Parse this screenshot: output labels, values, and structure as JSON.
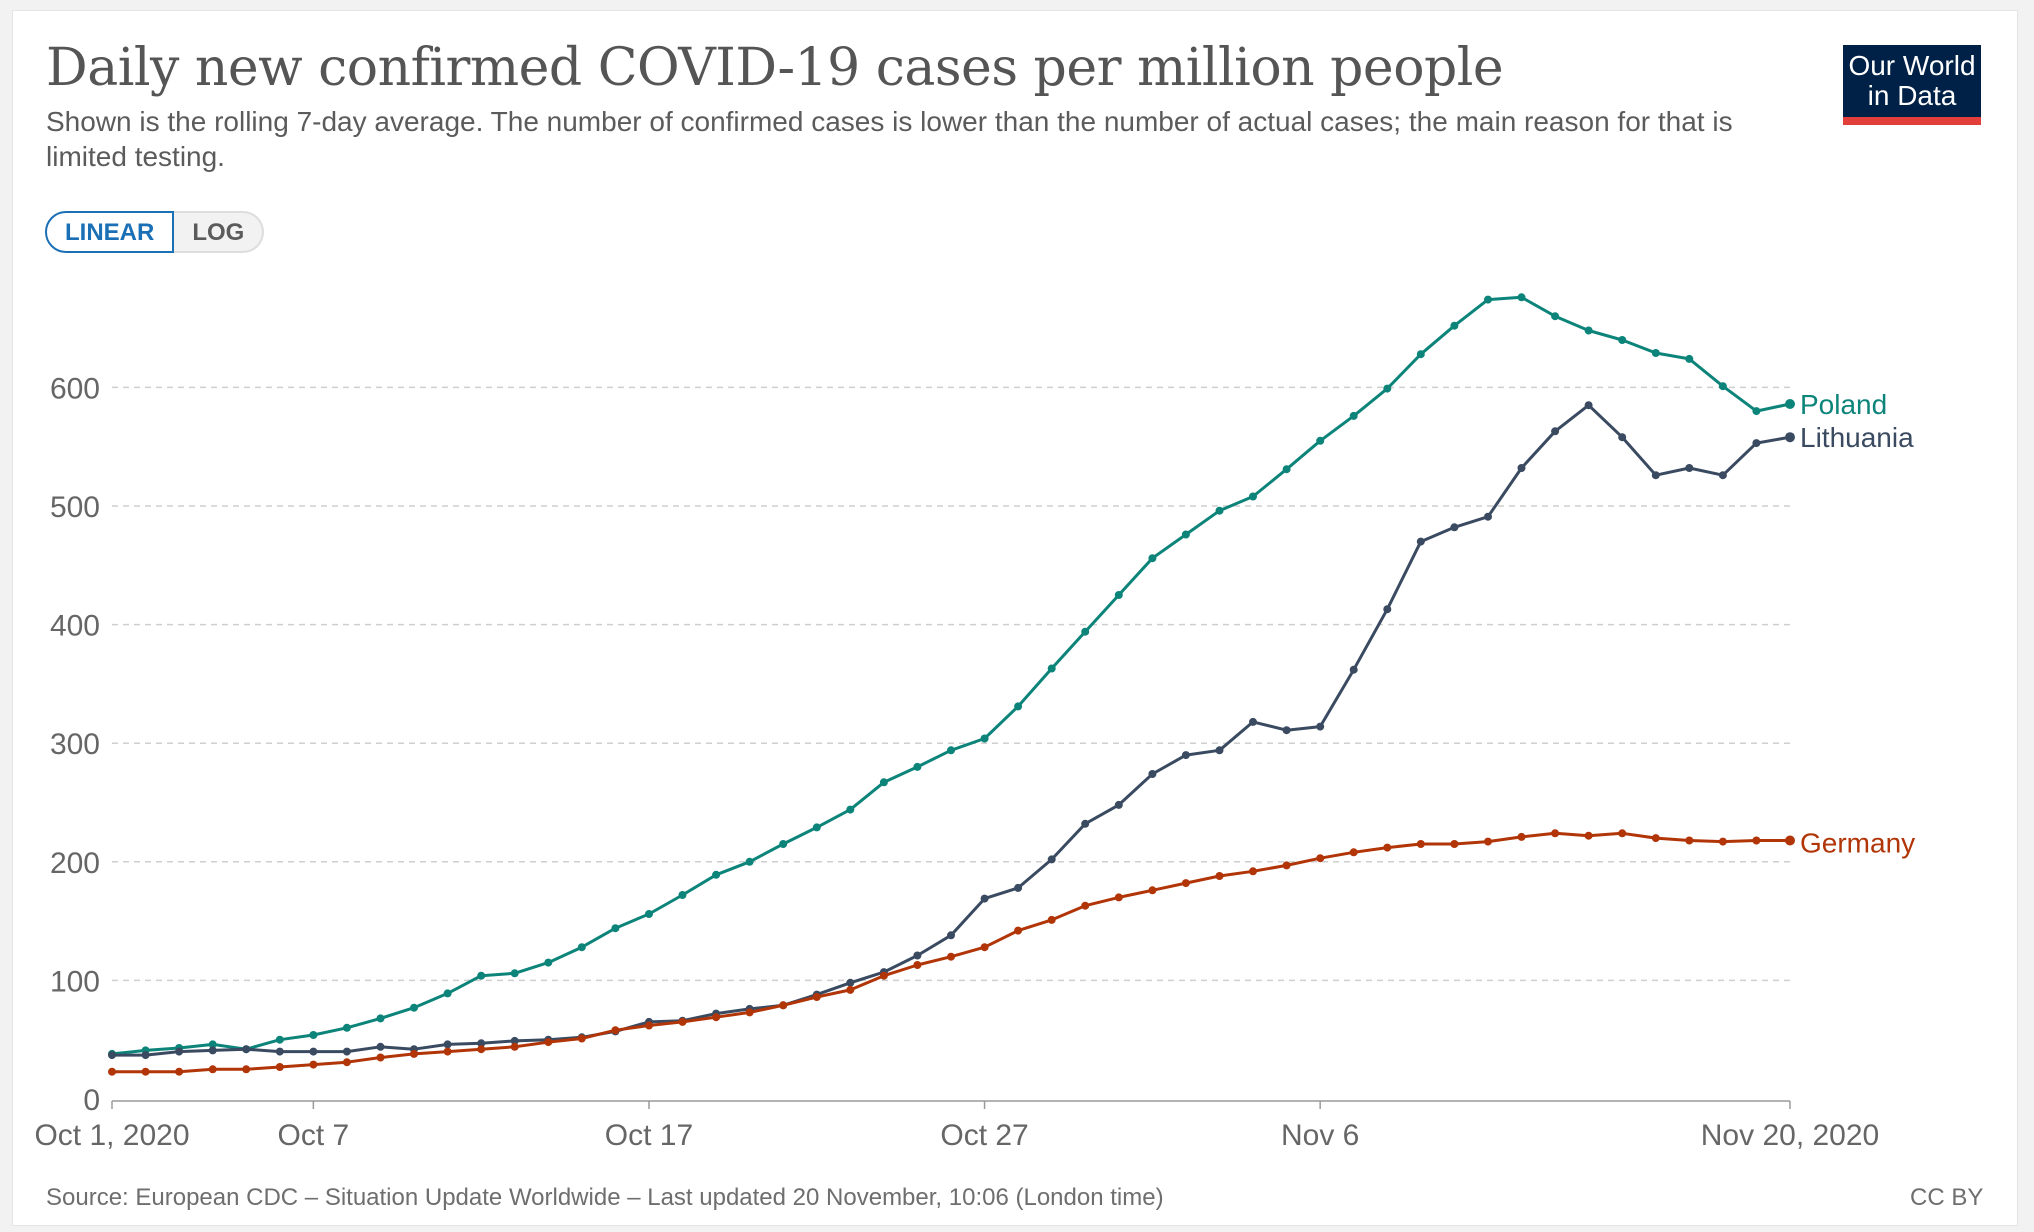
{
  "header": {
    "title": "Daily new confirmed COVID-19 cases per million people",
    "subtitle": "Shown is the rolling 7-day average. The number of confirmed cases is lower than the number of actual cases; the main reason for that is limited testing.",
    "logo_line1": "Our World",
    "logo_line2": "in Data",
    "logo_color": "#002147",
    "logo_accent": "#e23e3a"
  },
  "controls": {
    "linear_label": "LINEAR",
    "log_label": "LOG",
    "active": "linear"
  },
  "chart_data": {
    "type": "line",
    "x_unit": "day index (0 = Oct 1, 2020)",
    "x_ticks": [
      {
        "day": 0,
        "label": "Oct 1, 2020"
      },
      {
        "day": 6,
        "label": "Oct 7"
      },
      {
        "day": 16,
        "label": "Oct 17"
      },
      {
        "day": 26,
        "label": "Oct 27"
      },
      {
        "day": 36,
        "label": "Nov 6"
      },
      {
        "day": 50,
        "label": "Nov 20, 2020"
      }
    ],
    "y_ticks": [
      0,
      100,
      200,
      300,
      400,
      500,
      600
    ],
    "ylim": [
      0,
      690
    ],
    "xlim": [
      0,
      50
    ],
    "grid": "horizontal dashed",
    "legend": "labels at line ends",
    "series": [
      {
        "name": "Poland",
        "color": "#0c8479",
        "values": [
          38,
          41,
          43,
          46,
          42,
          50,
          54,
          60,
          68,
          77,
          89,
          104,
          106,
          115,
          128,
          144,
          156,
          172,
          189,
          200,
          215,
          229,
          244,
          267,
          280,
          294,
          304,
          331,
          363,
          394,
          425,
          456,
          476,
          496,
          508,
          531,
          555,
          576,
          599,
          628,
          652,
          674,
          676,
          660,
          648,
          640,
          629,
          624,
          601,
          580,
          586
        ]
      },
      {
        "name": "Lithuania",
        "color": "#3a4a60",
        "values": [
          37,
          37,
          40,
          41,
          42,
          40,
          40,
          40,
          44,
          42,
          46,
          47,
          49,
          50,
          52,
          57,
          65,
          66,
          72,
          76,
          79,
          88,
          98,
          107,
          121,
          138,
          169,
          178,
          202,
          232,
          248,
          274,
          290,
          294,
          318,
          311,
          314,
          362,
          413,
          470,
          482,
          491,
          532,
          563,
          585,
          558,
          526,
          532,
          526,
          553,
          558
        ]
      },
      {
        "name": "Germany",
        "color": "#b13507",
        "values": [
          23,
          23,
          23,
          25,
          25,
          27,
          29,
          31,
          35,
          38,
          40,
          42,
          44,
          48,
          51,
          58,
          62,
          65,
          69,
          73,
          79,
          86,
          92,
          104,
          113,
          120,
          128,
          142,
          151,
          163,
          170,
          176,
          182,
          188,
          192,
          197,
          203,
          208,
          212,
          215,
          215,
          217,
          221,
          224,
          222,
          224,
          220,
          218,
          217,
          218,
          218
        ]
      }
    ]
  },
  "footer": {
    "source": "Source: European CDC – Situation Update Worldwide – Last updated 20 November, 10:06 (London time)",
    "license": "CC BY"
  }
}
